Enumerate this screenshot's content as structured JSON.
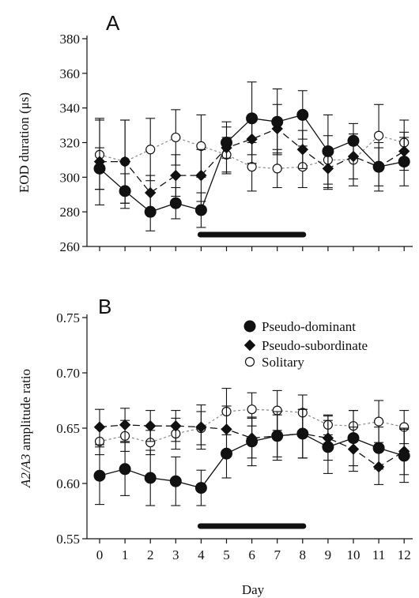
{
  "chart_data": [
    {
      "type": "line",
      "panel_label": "A",
      "ylabel": "EOD duration (μs)",
      "xlabel": "",
      "x": [
        0,
        1,
        2,
        3,
        4,
        5,
        6,
        7,
        8,
        9,
        10,
        11,
        12
      ],
      "ylim": [
        260,
        380
      ],
      "yticks": [
        260,
        280,
        300,
        320,
        340,
        360,
        380
      ],
      "treatment_bar": [
        4,
        8
      ],
      "series": [
        {
          "name": "Pseudo-dominant",
          "marker": "filled-circle",
          "linestyle": "solid",
          "values": [
            305,
            292,
            280,
            285,
            281,
            320,
            334,
            332,
            336,
            315,
            321,
            306,
            309
          ],
          "err": [
            12,
            10,
            11,
            9,
            10,
            9,
            21,
            19,
            14,
            21,
            10,
            14,
            14
          ]
        },
        {
          "name": "Pseudo-subordinate",
          "marker": "filled-diamond",
          "linestyle": "dashed",
          "values": [
            309,
            309,
            291,
            301,
            301,
            317,
            322,
            328,
            316,
            305,
            312,
            306,
            315
          ],
          "err": [
            25,
            24,
            10,
            12,
            15,
            15,
            14,
            14,
            11,
            12,
            13,
            11,
            11
          ]
        },
        {
          "name": "Solitary",
          "marker": "open-circle",
          "linestyle": "dotted",
          "values": [
            313,
            309,
            316,
            323,
            318,
            313,
            306,
            305,
            306,
            310,
            310,
            324,
            320
          ],
          "err": [
            20,
            24,
            18,
            16,
            18,
            10,
            14,
            11,
            12,
            14,
            15,
            18,
            13
          ]
        }
      ]
    },
    {
      "type": "line",
      "panel_label": "B",
      "ylabel": "A2/A3 amplitude ratio",
      "xlabel": "Day",
      "x": [
        0,
        1,
        2,
        3,
        4,
        5,
        6,
        7,
        8,
        9,
        10,
        11,
        12
      ],
      "xticks": [
        "0",
        "1",
        "2",
        "3",
        "4",
        "5",
        "6",
        "7",
        "8",
        "9",
        "10",
        "11",
        "12"
      ],
      "ylim": [
        0.55,
        0.75
      ],
      "yticks": [
        "0.55",
        "0.60",
        "0.65",
        "0.70",
        "0.75"
      ],
      "treatment_bar": [
        4,
        8
      ],
      "legend_position": "top-right",
      "series": [
        {
          "name": "Pseudo-dominant",
          "marker": "filled-circle",
          "linestyle": "solid",
          "values": [
            0.607,
            0.613,
            0.605,
            0.602,
            0.596,
            0.627,
            0.638,
            0.643,
            0.645,
            0.633,
            0.641,
            0.632,
            0.625
          ],
          "err": [
            0.026,
            0.024,
            0.025,
            0.022,
            0.016,
            0.022,
            0.022,
            0.022,
            0.022,
            0.024,
            0.025,
            0.019,
            0.024
          ]
        },
        {
          "name": "Pseudo-subordinate",
          "marker": "filled-diamond",
          "linestyle": "dashed",
          "values": [
            0.651,
            0.653,
            0.652,
            0.652,
            0.651,
            0.649,
            0.641,
            0.643,
            0.645,
            0.641,
            0.631,
            0.615,
            0.629
          ],
          "err": [
            0.016,
            0.015,
            0.014,
            0.014,
            0.02,
            0.021,
            0.018,
            0.019,
            0.022,
            0.02,
            0.02,
            0.016,
            0.021
          ]
        },
        {
          "name": "Solitary",
          "marker": "open-circle",
          "linestyle": "dotted",
          "values": [
            0.638,
            0.643,
            0.637,
            0.645,
            0.65,
            0.665,
            0.667,
            0.666,
            0.664,
            0.653,
            0.652,
            0.656,
            0.651
          ],
          "err": [
            0.012,
            0.014,
            0.011,
            0.014,
            0.015,
            0.021,
            0.015,
            0.018,
            0.016,
            0.009,
            0.014,
            0.019,
            0.015
          ]
        }
      ]
    }
  ]
}
